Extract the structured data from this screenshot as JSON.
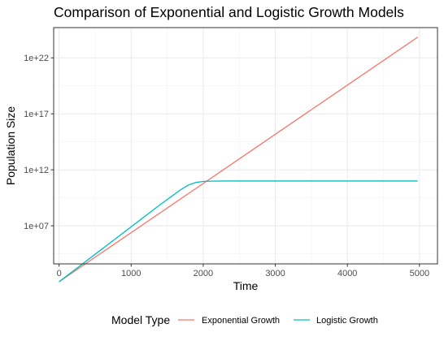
{
  "chart_data": {
    "type": "line",
    "title": "Comparison of Exponential and Logistic Growth Models",
    "xlabel": "Time",
    "ylabel": "Population Size",
    "y_scale": "log10",
    "xlim": [
      -75,
      5250
    ],
    "ylim_log10": [
      3.6,
      24.7
    ],
    "x_ticks": [
      0,
      1000,
      2000,
      3000,
      4000,
      5000
    ],
    "x_tick_labels": [
      "0",
      "1000",
      "2000",
      "3000",
      "4000",
      "5000"
    ],
    "y_ticks_log10": [
      7,
      12,
      17,
      22
    ],
    "y_tick_labels": [
      "1e+07",
      "1e+12",
      "1e+17",
      "1e+22"
    ],
    "grid": true,
    "legend_placement": "bottom",
    "legend_title": "Model Type",
    "series": [
      {
        "name": "Exponential Growth",
        "color": "#F8766D",
        "points": [
          {
            "x": 0,
            "y": 100
          },
          {
            "x": 4975,
            "y": 7e+23
          }
        ]
      },
      {
        "name": "Logistic Growth",
        "color": "#00BFC4",
        "points": [
          {
            "x": 0,
            "y": 100
          },
          {
            "x": 1000,
            "y": 8200000.0
          },
          {
            "x": 1400,
            "y": 750000000.0
          },
          {
            "x": 1600,
            "y": 6500000000.0
          },
          {
            "x": 1700,
            "y": 19000000000.0
          },
          {
            "x": 1800,
            "y": 45000000000.0
          },
          {
            "x": 1900,
            "y": 75000000000.0
          },
          {
            "x": 2000,
            "y": 91000000000.0
          },
          {
            "x": 2100,
            "y": 97000000000.0
          },
          {
            "x": 2300,
            "y": 100000000000.0
          },
          {
            "x": 2500,
            "y": 100000000000.0
          },
          {
            "x": 4975,
            "y": 100000000000.0
          }
        ]
      }
    ]
  }
}
